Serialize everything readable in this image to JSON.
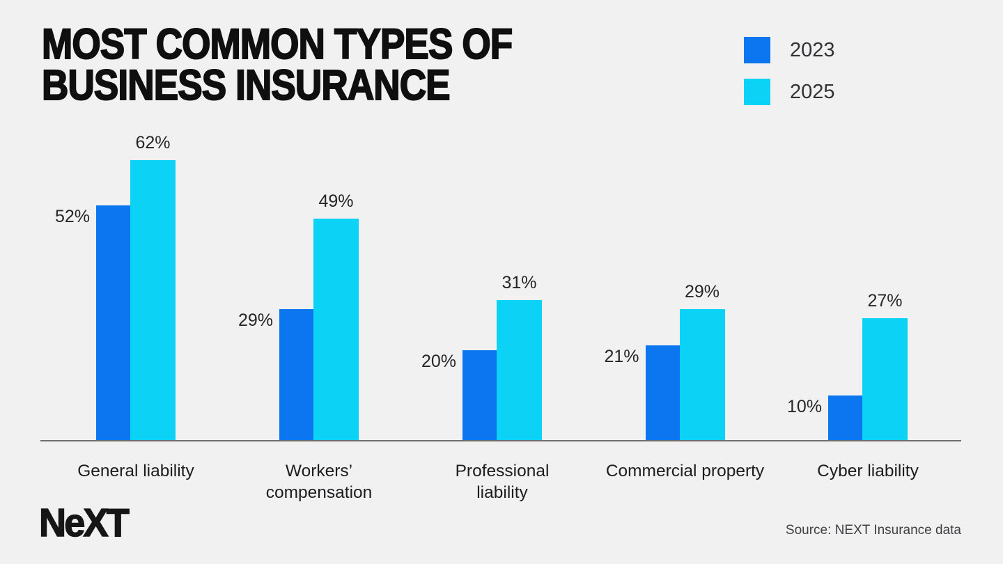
{
  "page": {
    "background": "#f1f1f2",
    "axis_color": "#6e6e6e"
  },
  "header": {
    "title": "MOST COMMON TYPES OF\nBUSINESS INSURANCE"
  },
  "legend": {
    "items": [
      {
        "label": "2023",
        "color": "#0b76f0"
      },
      {
        "label": "2025",
        "color": "#0cd2f5"
      }
    ]
  },
  "footer": {
    "logo_text": "NeXT",
    "source": "Source: NEXT Insurance data"
  },
  "chart_data": {
    "type": "bar",
    "title": "MOST COMMON TYPES OF BUSINESS INSURANCE",
    "categories": [
      "General liability",
      "Workers’\ncompensation",
      "Professional\nliability",
      "Commercial property",
      "Cyber liability"
    ],
    "series": [
      {
        "name": "2023",
        "color": "#0b76f0",
        "values": [
          52,
          29,
          20,
          21,
          10
        ]
      },
      {
        "name": "2025",
        "color": "#0cd2f5",
        "values": [
          62,
          49,
          31,
          29,
          27
        ]
      }
    ],
    "value_suffix": "%",
    "xlabel": "",
    "ylabel": "",
    "ylim": [
      0,
      70
    ],
    "grid": false,
    "legend_position": "top-right",
    "data_labels": true
  }
}
